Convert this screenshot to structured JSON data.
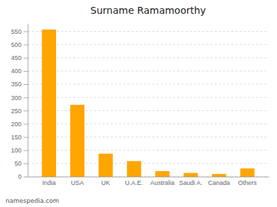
{
  "chart_data": {
    "type": "bar",
    "title": "Surname Ramamoorthy",
    "categories": [
      "India",
      "USA",
      "UK",
      "U.A.E.",
      "Australia",
      "Saudi A.",
      "Canada",
      "Others"
    ],
    "values": [
      557,
      272,
      87,
      59,
      21,
      14,
      10,
      31
    ],
    "color": "#FFA500",
    "ylim": [
      0,
      580
    ],
    "yticks": [
      0,
      50,
      100,
      150,
      200,
      250,
      300,
      350,
      400,
      450,
      500,
      550
    ],
    "grid": true,
    "annotations": [
      "namespedia.com"
    ]
  }
}
